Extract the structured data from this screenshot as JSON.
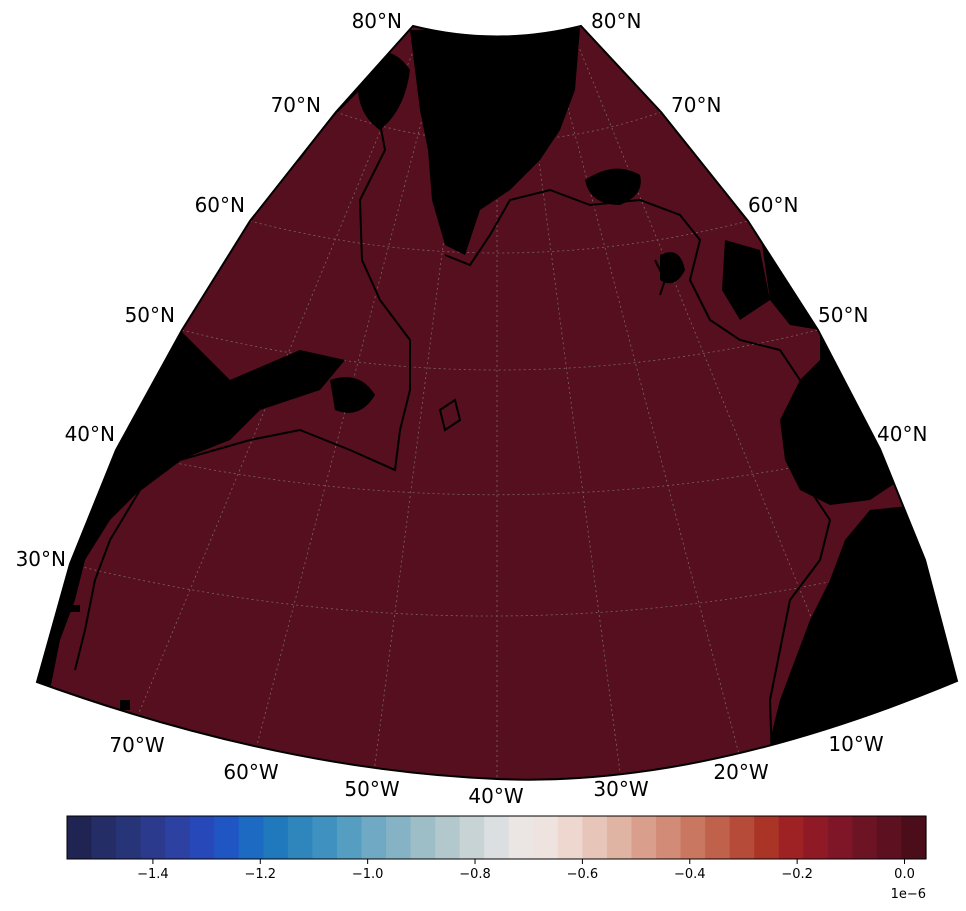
{
  "map": {
    "ocean_color": "#550f1e",
    "land_color": "#000000",
    "coast_color": "#000000",
    "gridline_color": "#8a8a8a"
  },
  "latitude_labels": {
    "left": [
      "80°N",
      "70°N",
      "60°N",
      "50°N",
      "40°N",
      "30°N"
    ],
    "right": [
      "80°N",
      "70°N",
      "60°N",
      "50°N",
      "40°N"
    ]
  },
  "longitude_labels": [
    "70°W",
    "60°W",
    "50°W",
    "40°W",
    "30°W",
    "20°W",
    "10°W"
  ],
  "colorbar": {
    "ticks": [
      "−1.4",
      "−1.2",
      "−1.0",
      "−0.8",
      "−0.6",
      "−0.4",
      "−0.2",
      "0.0"
    ],
    "exponent": "1e−6",
    "colors": [
      "#1f2453",
      "#242d66",
      "#283478",
      "#2c3a8d",
      "#2d41a3",
      "#2748b8",
      "#1f56c4",
      "#1c6ac2",
      "#2078bd",
      "#2f86bd",
      "#3f92bf",
      "#559dc1",
      "#6fa9c4",
      "#85b3c5",
      "#9ebec7",
      "#b2c8cd",
      "#c8d3d6",
      "#dcdfe1",
      "#ebe6e4",
      "#efe3df",
      "#eed7cf",
      "#e7c6b9",
      "#e0b4a3",
      "#da9f8c",
      "#d28b77",
      "#c97761",
      "#c0614b",
      "#b54b38",
      "#aa3527",
      "#9e2124",
      "#8f1a26",
      "#7f1627",
      "#6c1324",
      "#5c1020",
      "#4a0d19"
    ]
  }
}
